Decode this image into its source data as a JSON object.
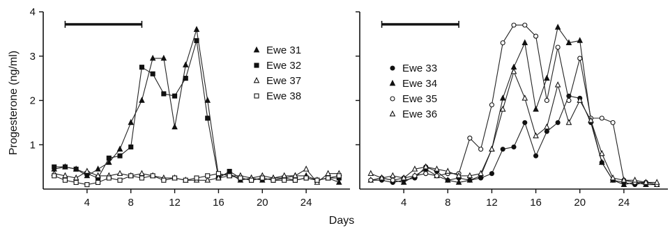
{
  "figure": {
    "ylabel": "Progesterone (ng/ml)",
    "xlabel": "Days"
  },
  "chart_data": [
    {
      "type": "line",
      "panel": "left",
      "xlim": [
        0,
        28
      ],
      "ylim": [
        0,
        4
      ],
      "xticks": [
        4,
        8,
        12,
        16,
        20,
        24
      ],
      "yticks": [
        1,
        2,
        3,
        4
      ],
      "treatment_bar": [
        2,
        9
      ],
      "legend_position": "top-right",
      "series": [
        {
          "name": "Ewe 31",
          "marker": "triangle-filled",
          "x": [
            1,
            2,
            3,
            4,
            5,
            6,
            7,
            8,
            9,
            10,
            11,
            12,
            13,
            14,
            15,
            16,
            17,
            18,
            19,
            20,
            21,
            22,
            23,
            24,
            25,
            26,
            27
          ],
          "y": [
            0.45,
            0.5,
            0.45,
            0.3,
            0.45,
            0.6,
            0.9,
            1.5,
            2.0,
            2.95,
            2.95,
            1.4,
            2.8,
            3.6,
            2.0,
            0.3,
            0.35,
            0.2,
            0.25,
            0.2,
            0.25,
            0.25,
            0.3,
            0.3,
            0.2,
            0.25,
            0.15
          ]
        },
        {
          "name": "Ewe 32",
          "marker": "square-filled",
          "x": [
            1,
            2,
            3,
            4,
            5,
            6,
            7,
            8,
            9,
            10,
            11,
            12,
            13,
            14,
            15,
            16,
            17,
            18,
            19,
            20,
            21,
            22,
            23,
            24,
            25,
            26,
            27
          ],
          "y": [
            0.5,
            0.5,
            0.45,
            0.35,
            0.25,
            0.7,
            0.75,
            0.95,
            2.75,
            2.6,
            2.15,
            2.1,
            2.5,
            3.35,
            1.6,
            0.25,
            0.4,
            0.25,
            0.2,
            0.25,
            0.2,
            0.25,
            0.2,
            0.25,
            0.2,
            0.25,
            0.25
          ]
        },
        {
          "name": "Ewe 37",
          "marker": "triangle-open",
          "x": [
            1,
            2,
            3,
            4,
            5,
            6,
            7,
            8,
            9,
            10,
            11,
            12,
            13,
            14,
            15,
            16,
            17,
            18,
            19,
            20,
            21,
            22,
            23,
            24,
            25,
            26,
            27
          ],
          "y": [
            0.35,
            0.3,
            0.25,
            0.4,
            0.3,
            0.3,
            0.35,
            0.3,
            0.35,
            0.3,
            0.25,
            0.25,
            0.2,
            0.2,
            0.2,
            0.25,
            0.3,
            0.3,
            0.25,
            0.3,
            0.25,
            0.3,
            0.3,
            0.45,
            0.15,
            0.35,
            0.35
          ]
        },
        {
          "name": "Ewe 38",
          "marker": "square-open",
          "x": [
            1,
            2,
            3,
            4,
            5,
            6,
            7,
            8,
            9,
            10,
            11,
            12,
            13,
            14,
            15,
            16,
            17,
            18,
            19,
            20,
            21,
            22,
            23,
            24,
            25,
            26,
            27
          ],
          "y": [
            0.3,
            0.2,
            0.15,
            0.1,
            0.15,
            0.25,
            0.2,
            0.3,
            0.25,
            0.3,
            0.2,
            0.25,
            0.2,
            0.25,
            0.3,
            0.35,
            0.3,
            0.25,
            0.2,
            0.25,
            0.2,
            0.2,
            0.2,
            0.25,
            0.2,
            0.25,
            0.3
          ]
        }
      ]
    },
    {
      "type": "line",
      "panel": "right",
      "xlim": [
        0,
        28
      ],
      "ylim": [
        0,
        4
      ],
      "xticks": [
        4,
        8,
        12,
        16,
        20,
        24
      ],
      "yticks": [
        1,
        2,
        3,
        4
      ],
      "treatment_bar": [
        2,
        9
      ],
      "legend_position": "top-left",
      "series": [
        {
          "name": "Ewe 33",
          "marker": "circle-filled",
          "x": [
            1,
            2,
            3,
            4,
            5,
            6,
            7,
            8,
            9,
            10,
            11,
            12,
            13,
            14,
            15,
            16,
            17,
            18,
            19,
            20,
            21,
            22,
            23,
            24,
            25,
            26,
            27
          ],
          "y": [
            0.2,
            0.2,
            0.15,
            0.2,
            0.25,
            0.5,
            0.4,
            0.2,
            0.25,
            0.2,
            0.25,
            0.35,
            0.9,
            0.95,
            1.5,
            0.75,
            1.3,
            1.5,
            2.1,
            2.05,
            1.5,
            0.6,
            0.2,
            0.15,
            0.1,
            0.15,
            0.1
          ]
        },
        {
          "name": "Ewe 34",
          "marker": "triangle-filled",
          "x": [
            1,
            2,
            3,
            4,
            5,
            6,
            7,
            8,
            9,
            10,
            11,
            12,
            13,
            14,
            15,
            16,
            17,
            18,
            19,
            20,
            21,
            22,
            23,
            24,
            25,
            26,
            27
          ],
          "y": [
            0.2,
            0.25,
            0.2,
            0.15,
            0.3,
            0.45,
            0.3,
            0.2,
            0.15,
            0.2,
            0.3,
            0.9,
            2.05,
            2.75,
            3.3,
            1.8,
            2.5,
            3.65,
            3.3,
            3.35,
            1.55,
            0.6,
            0.2,
            0.1,
            0.15,
            0.1,
            0.1
          ]
        },
        {
          "name": "Ewe 35",
          "marker": "circle-open",
          "x": [
            1,
            2,
            3,
            4,
            5,
            6,
            7,
            8,
            9,
            10,
            11,
            12,
            13,
            14,
            15,
            16,
            17,
            18,
            19,
            20,
            21,
            22,
            23,
            24,
            25,
            26,
            27
          ],
          "y": [
            0.2,
            0.25,
            0.2,
            0.25,
            0.3,
            0.35,
            0.3,
            0.35,
            0.35,
            1.15,
            0.9,
            1.9,
            3.3,
            3.7,
            3.7,
            3.45,
            2.0,
            3.2,
            2.0,
            2.95,
            1.6,
            1.6,
            1.5,
            0.2,
            0.15,
            0.15,
            0.1
          ]
        },
        {
          "name": "Ewe 36",
          "marker": "triangle-open",
          "x": [
            1,
            2,
            3,
            4,
            5,
            6,
            7,
            8,
            9,
            10,
            11,
            12,
            13,
            14,
            15,
            16,
            17,
            18,
            19,
            20,
            21,
            22,
            23,
            24,
            25,
            26,
            27
          ],
          "y": [
            0.35,
            0.25,
            0.3,
            0.25,
            0.45,
            0.5,
            0.45,
            0.4,
            0.3,
            0.3,
            0.35,
            0.9,
            1.8,
            2.65,
            2.05,
            1.2,
            1.4,
            2.35,
            1.5,
            2.0,
            1.55,
            0.8,
            0.25,
            0.2,
            0.2,
            0.15,
            0.15
          ]
        }
      ]
    }
  ]
}
